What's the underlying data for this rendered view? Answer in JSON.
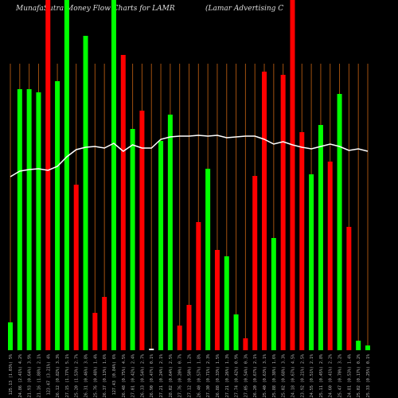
{
  "chart_data": {
    "type": "bar",
    "title": "MunafaSutra  Money Flow  Charts for LAMR",
    "subtitle": "(Lamar Advertising C",
    "categories": [
      "125.13 (1.03%) 5%",
      "124.86 (2.41%) 4.2%",
      "121.93 (0.64%) 3.9%",
      "121.16 (1.88%) 2.1%",
      "123.47 (3.21%) 4%",
      "126.12 (0.82%) 3.3%",
      "127.15 (1.77%) 5.1%",
      "125.20 (1.53%) 2.7%",
      "126.31 (0.46%) 3.8%",
      "125.76 (0.48%) 1.4%",
      "126.37 (0.13%) 1.6%",
      "127.43 (0.84%) 6%",
      "126.48 (0.75%) 4.5%",
      "127.01 (0.42%) 2.4%",
      "126.33 (0.54%) 2.7%",
      "126.90 (0.47%) 0.1%",
      "127.21 (0.24%) 2.1%",
      "128.02 (0.64%) 2.5%",
      "127.76 (0.20%) 0.7%",
      "127.12 (0.50%) 1.2%",
      "126.40 (0.57%) 1.8%",
      "127.30 (0.71%) 2.3%",
      "126.88 (0.33%) 1.5%",
      "127.21 (0.26%) 1.3%",
      "127.74 (0.42%) 0.9%",
      "127.05 (0.54%) 0.3%",
      "126.20 (0.67%) 2.1%",
      "125.40 (0.63%) 3.1%",
      "125.88 (0.38%) 1.6%",
      "125.02 (0.68%) 3.3%",
      "124.18 (0.67%) 4.5%",
      "123.92 (0.21%) 2.5%",
      "124.55 (0.51%) 2.1%",
      "125.11 (0.45%) 2.8%",
      "124.60 (0.41%) 2.2%",
      "125.47 (0.70%) 3.2%",
      "124.81 (0.53%) 1.4%",
      "125.02 (0.17%) 0.2%",
      "125.33 (0.25%) 0.1%"
    ],
    "values": [
      35,
      328,
      328,
      324,
      460,
      338,
      460,
      208,
      395,
      47,
      67,
      460,
      371,
      278,
      301,
      2,
      263,
      296,
      31,
      57,
      161,
      228,
      126,
      118,
      45,
      15,
      219,
      350,
      141,
      346,
      460,
      274,
      221,
      283,
      237,
      322,
      155,
      12,
      6
    ],
    "bar_colors": [
      "#00ff00",
      "#00ff00",
      "#00ff00",
      "#00ff00",
      "#ff0000",
      "#00ff00",
      "#00ff00",
      "#ff0000",
      "#00ff00",
      "#ff0000",
      "#ff0000",
      "#00ff00",
      "#ff0000",
      "#00ff00",
      "#ff0000",
      "#ffffff",
      "#00ff00",
      "#00ff00",
      "#ff0000",
      "#ff0000",
      "#ff0000",
      "#00ff00",
      "#ff0000",
      "#00ff00",
      "#00ff00",
      "#ff0000",
      "#ff0000",
      "#ff0000",
      "#00ff00",
      "#ff0000",
      "#ff0000",
      "#ff0000",
      "#00ff00",
      "#00ff00",
      "#ff0000",
      "#00ff00",
      "#ff0000",
      "#00ff00",
      "#00ff00"
    ],
    "line": {
      "color": "#ffffff",
      "values": [
        218,
        225,
        227,
        228,
        226,
        231,
        243,
        252,
        255,
        256,
        254,
        260,
        250,
        258,
        254,
        254,
        265,
        268,
        269,
        269,
        270,
        269,
        270,
        267,
        268,
        269,
        269,
        265,
        259,
        262,
        258,
        255,
        253,
        256,
        259,
        256,
        251,
        253,
        250
      ]
    }
  }
}
